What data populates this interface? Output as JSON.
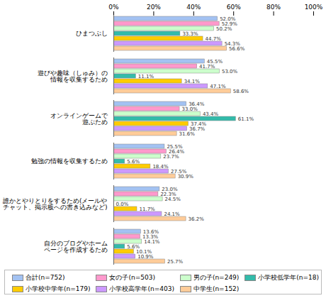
{
  "chart_data": {
    "type": "bar",
    "orientation": "horizontal",
    "data_labels": true,
    "legend": "bottom",
    "xlim": [
      0,
      100
    ],
    "xticks": [
      {
        "value": 0,
        "label": "0%"
      },
      {
        "value": 20,
        "label": "20%"
      },
      {
        "value": 40,
        "label": "40%"
      },
      {
        "value": 60,
        "label": "60%"
      },
      {
        "value": 80,
        "label": "80%"
      },
      {
        "value": 100,
        "label": "100%"
      }
    ],
    "categories": [
      "ひまつぶし",
      "遊びや趣味（しゅみ）の\n情報を収集するため",
      "オンラインゲームで\n遊ぶため",
      "勉強の情報を収集するため",
      "誰かとやりとりをするため(メールや\nチャット、掲示板への書き込みなど)",
      "自分のブログやホーム\nページを作成するため"
    ],
    "series": [
      {
        "name": "合計(n=752)",
        "color": "#a3c2f2",
        "values": [
          52.0,
          45.5,
          36.4,
          25.5,
          23.0,
          13.6
        ],
        "value_labels": [
          "52.0%",
          "45.5%",
          "36.4%",
          "25.5%",
          "23.0%",
          "13.6%"
        ]
      },
      {
        "name": "女の子(n=503)",
        "color": "#ff99cc",
        "values": [
          52.9,
          41.7,
          33.0,
          26.4,
          22.3,
          13.3
        ],
        "value_labels": [
          "52.9%",
          "41.7%",
          "33.0%",
          "26.4%",
          "22.3%",
          "13.3%"
        ]
      },
      {
        "name": "男の子(n=249)",
        "color": "#ccffcc",
        "values": [
          50.2,
          53.0,
          43.4,
          23.7,
          24.5,
          14.1
        ],
        "value_labels": [
          "50.2%",
          "53.0%",
          "43.4%",
          "23.7%",
          "24.5%",
          "14.1%"
        ]
      },
      {
        "name": "小学校低学年(n=18)",
        "color": "#33bbaa",
        "values": [
          33.3,
          11.1,
          61.1,
          5.6,
          0.0,
          5.6
        ],
        "value_labels": [
          "33.3%",
          "11.1%",
          "61.1%",
          "5.6%",
          "0.0%",
          "5.6%"
        ]
      },
      {
        "name": "小学校中学年(n=179)",
        "color": "#ffcc00",
        "values": [
          44.7,
          34.1,
          37.4,
          18.4,
          11.7,
          10.1
        ],
        "value_labels": [
          "44.7%",
          "34.1%",
          "37.4%",
          "18.4%",
          "11.7%",
          "10.1%"
        ]
      },
      {
        "name": "小学校高学年(n=403)",
        "color": "#cc99ff",
        "values": [
          54.3,
          47.1,
          36.7,
          27.5,
          24.1,
          10.9
        ],
        "value_labels": [
          "54.3%",
          "47.1%",
          "36.7%",
          "27.5%",
          "24.1%",
          "10.9%"
        ]
      },
      {
        "name": "中学生(n=152)",
        "color": "#ffcc99",
        "values": [
          56.6,
          58.6,
          31.6,
          30.9,
          36.2,
          25.7
        ],
        "value_labels": [
          "56.6%",
          "58.6%",
          "31.6%",
          "30.9%",
          "36.2%",
          "25.7%"
        ]
      }
    ]
  }
}
